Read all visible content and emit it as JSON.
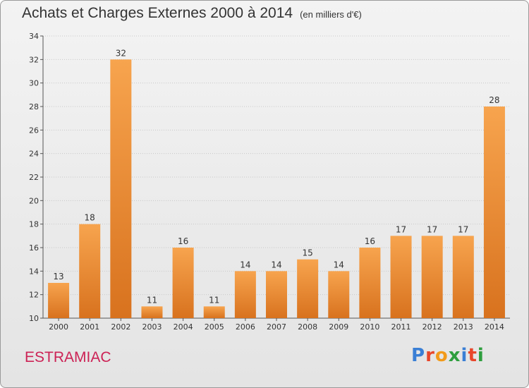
{
  "title": "Achats et Charges Externes 2000 à 2014",
  "subtitle": "(en milliers d'€)",
  "commune": "ESTRAMIAC",
  "logo": {
    "text": "Proxiti",
    "colors": [
      "#3a7fd5",
      "#e8462a",
      "#f29a1a",
      "#2e9e3e",
      "#3a7fd5",
      "#e8462a",
      "#2e9e3e"
    ]
  },
  "colors": {
    "bar_top": "#f7a44e",
    "bar_bottom": "#d8721e",
    "title": "#333333",
    "commune": "#cc2255"
  },
  "chart_data": {
    "type": "bar",
    "categories": [
      "2000",
      "2001",
      "2002",
      "2003",
      "2004",
      "2005",
      "2006",
      "2007",
      "2008",
      "2009",
      "2010",
      "2011",
      "2012",
      "2013",
      "2014"
    ],
    "values": [
      13,
      18,
      32,
      11,
      16,
      11,
      14,
      14,
      15,
      14,
      16,
      17,
      17,
      17,
      28
    ],
    "ylim": [
      10,
      34
    ],
    "yticks": [
      10,
      12,
      14,
      16,
      18,
      20,
      22,
      24,
      26,
      28,
      30,
      32,
      34
    ],
    "grid": true
  }
}
